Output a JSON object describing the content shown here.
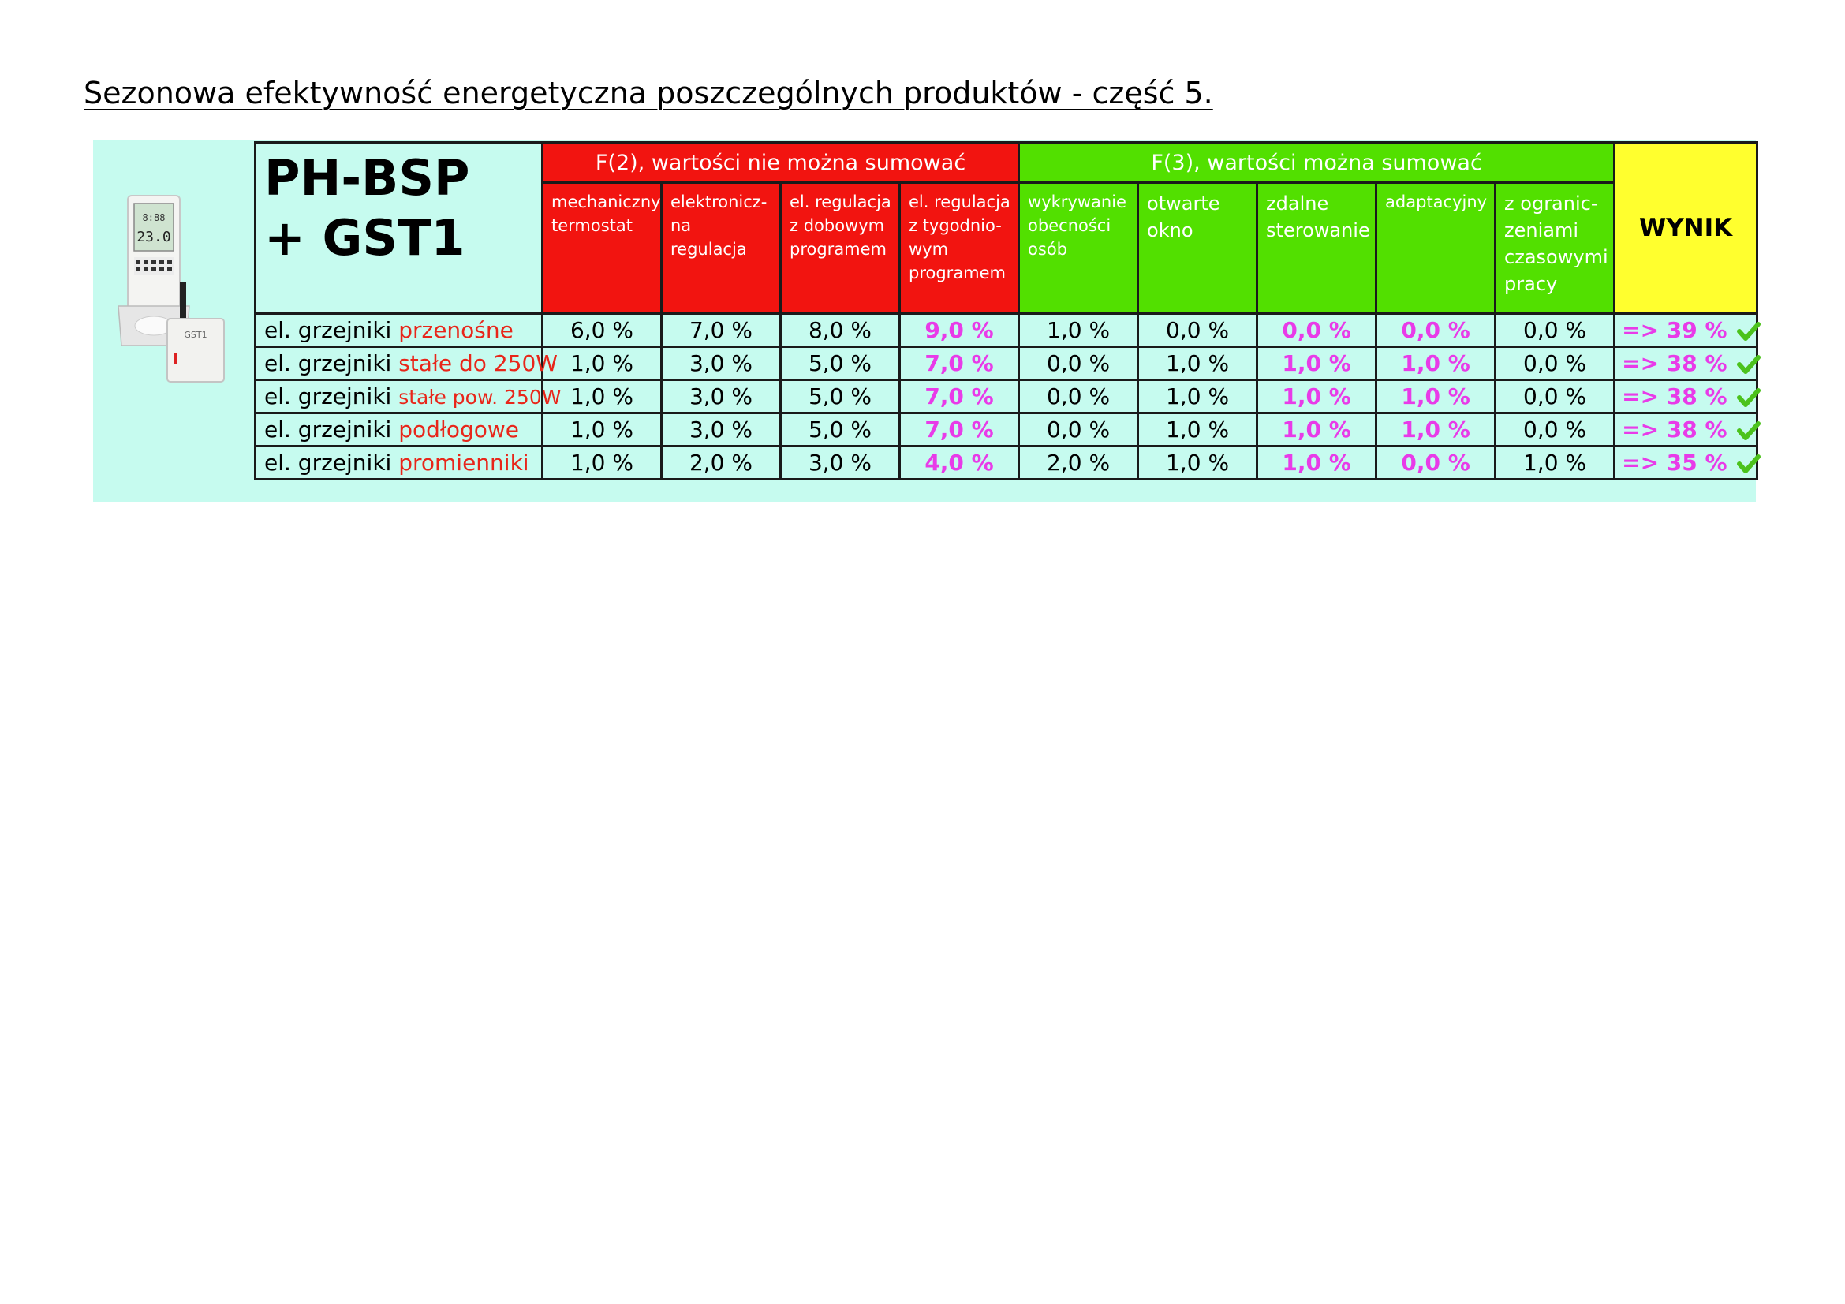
{
  "page": {
    "title": "Sezonowa efektywność energetyczna poszczególnych produktów - część 5."
  },
  "product": {
    "name_line1": "PH-BSP",
    "name_line2": "+ GST1",
    "image": "thermostat-and-gst1-module-photo"
  },
  "groups": {
    "f2": "F(2), wartości nie można sumować",
    "f3": "F(3), wartości można sumować",
    "result": "WYNIK"
  },
  "columns": {
    "c1": [
      "mechaniczny",
      "termostat"
    ],
    "c2": [
      "elektronicz-",
      "na",
      "regulacja"
    ],
    "c3": [
      "el. regulacja",
      "z dobowym",
      "programem"
    ],
    "c4": [
      "el. regulacja",
      "z tygodnio-",
      "wym",
      "programem"
    ],
    "c5": [
      "wykrywanie",
      "obecności",
      "osób"
    ],
    "c6": [
      "otwarte",
      "okno"
    ],
    "c7": [
      "zdalne",
      "sterowanie"
    ],
    "c8": [
      "adaptacyjny"
    ],
    "c9": [
      "z ogranic-",
      "zeniami",
      "czasowymi",
      "pracy"
    ]
  },
  "rows": [
    {
      "prefix": "el. grzejniki ",
      "type": "przenośne",
      "v": [
        "6,0 %",
        "7,0 %",
        "8,0 %",
        "9,0 %",
        "1,0 %",
        "0,0 %",
        "0,0 %",
        "0,0 %",
        "0,0 %"
      ],
      "result": "=> 39 %"
    },
    {
      "prefix": "el. grzejniki ",
      "type": "stałe do 250W",
      "v": [
        "1,0 %",
        "3,0 %",
        "5,0 %",
        "7,0 %",
        "0,0 %",
        "1,0 %",
        "1,0 %",
        "1,0 %",
        "0,0 %"
      ],
      "result": "=> 38 %"
    },
    {
      "prefix": "el. grzejniki ",
      "type": "stałe pow. 250W",
      "v": [
        "1,0 %",
        "3,0 %",
        "5,0 %",
        "7,0 %",
        "0,0 %",
        "1,0 %",
        "1,0 %",
        "1,0 %",
        "0,0 %"
      ],
      "result": "=> 38 %"
    },
    {
      "prefix": "el. grzejniki ",
      "type": "podłogowe",
      "v": [
        "1,0 %",
        "3,0 %",
        "5,0 %",
        "7,0 %",
        "0,0 %",
        "1,0 %",
        "1,0 %",
        "1,0 %",
        "0,0 %"
      ],
      "result": "=> 38 %"
    },
    {
      "prefix": "el. grzejniki ",
      "type": "promienniki",
      "v": [
        "1,0 %",
        "2,0 %",
        "3,0 %",
        "4,0 %",
        "2,0 %",
        "1,0 %",
        "1,0 %",
        "0,0 %",
        "1,0 %"
      ],
      "result": "=> 35 %"
    }
  ],
  "colors": {
    "panel_bg": "#c6fbef",
    "f2_bg": "#f21410",
    "f3_bg": "#52e000",
    "result_bg": "#ffff2e",
    "highlight": "#e83be8",
    "type_text": "#e8261a",
    "check": "#4cc21c"
  },
  "icons": {
    "result_mark": "checkmark-icon"
  }
}
